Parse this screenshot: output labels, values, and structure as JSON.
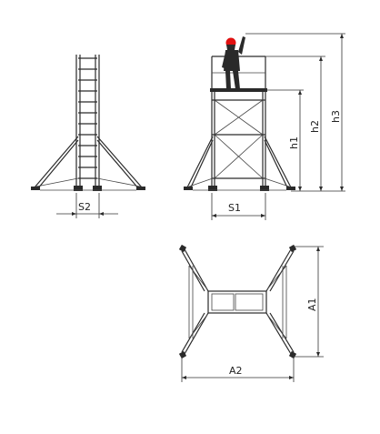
{
  "labels": {
    "s2": "S2",
    "s1": "S1",
    "h1": "h1",
    "h2": "h2",
    "h3": "h3",
    "a1": "A1",
    "a2": "A2"
  },
  "colors": {
    "line": "#2a2a2a",
    "helmet": "#e01010",
    "background": "#ffffff"
  }
}
